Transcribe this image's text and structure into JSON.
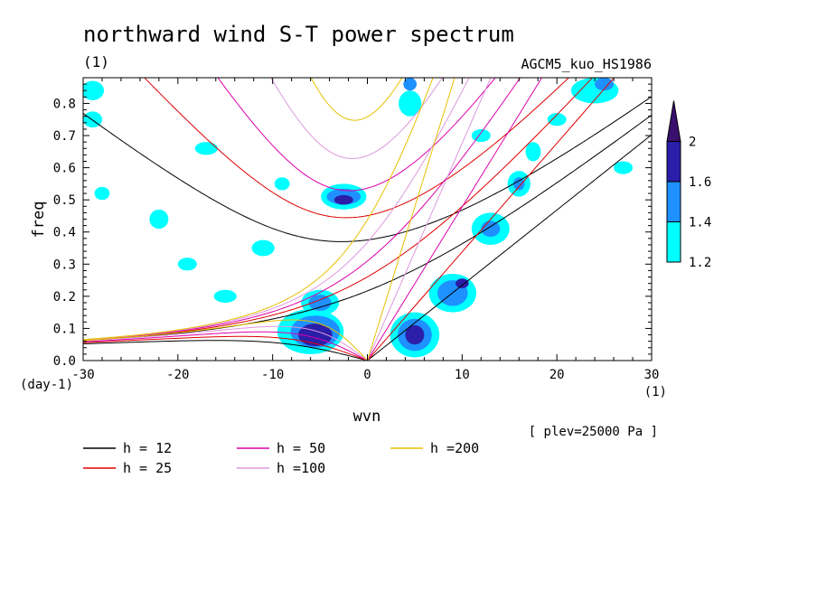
{
  "chart_data": {
    "type": "heatmap",
    "title": "northward wind S-T power spectrum",
    "unit_label": "(1)",
    "experiment": "AGCM5_kuo_HS1986",
    "xlabel": "wvn",
    "x_unit": "(1)",
    "ylabel": "freq",
    "y_unit": "(day-1)",
    "xlim": [
      -30,
      30
    ],
    "ylim": [
      0,
      0.88
    ],
    "x_ticks": [
      "-30",
      "-20",
      "-10",
      "0",
      "10",
      "20",
      "30"
    ],
    "y_ticks": [
      "0.0",
      "0.1",
      "0.2",
      "0.3",
      "0.4",
      "0.5",
      "0.6",
      "0.7",
      "0.8"
    ],
    "annotation": "[ plev=25000 Pa ]",
    "colorbar": {
      "levels": [
        "1.2",
        "1.4",
        "1.6",
        "2"
      ],
      "colors": [
        "#00ffff",
        "#1e90ff",
        "#2b1ea8",
        "#3b0f6e"
      ]
    },
    "dispersion_curves": [
      {
        "label": "h = 12",
        "h": 12,
        "color": "#000000"
      },
      {
        "label": "h = 25",
        "h": 25,
        "color": "#dd0000"
      },
      {
        "label": "h = 50",
        "h": 50,
        "color": "#dd00aa"
      },
      {
        "label": "h =100",
        "h": 100,
        "color": "#dd99dd"
      },
      {
        "label": "h =200",
        "h": 200,
        "color": "#e6c000"
      }
    ],
    "power_regions": [
      {
        "level": 1,
        "x": -6,
        "y": 0.09,
        "rx": 3.5,
        "ry": 0.07
      },
      {
        "level": 2,
        "x": -5.5,
        "y": 0.09,
        "rx": 2.6,
        "ry": 0.05
      },
      {
        "level": 3,
        "x": -5.5,
        "y": 0.08,
        "rx": 1.8,
        "ry": 0.035
      },
      {
        "level": 1,
        "x": -5,
        "y": 0.18,
        "rx": 2,
        "ry": 0.04
      },
      {
        "level": 2,
        "x": -5,
        "y": 0.18,
        "rx": 1.2,
        "ry": 0.025
      },
      {
        "level": 1,
        "x": -2.5,
        "y": 0.51,
        "rx": 2.4,
        "ry": 0.04
      },
      {
        "level": 2,
        "x": -2.5,
        "y": 0.51,
        "rx": 1.8,
        "ry": 0.025
      },
      {
        "level": 3,
        "x": -2.5,
        "y": 0.5,
        "rx": 1,
        "ry": 0.015
      },
      {
        "level": 1,
        "x": 5,
        "y": 0.08,
        "rx": 2.6,
        "ry": 0.07
      },
      {
        "level": 2,
        "x": 5,
        "y": 0.08,
        "rx": 1.8,
        "ry": 0.05
      },
      {
        "level": 3,
        "x": 5,
        "y": 0.08,
        "rx": 1,
        "ry": 0.03
      },
      {
        "level": 1,
        "x": 9,
        "y": 0.21,
        "rx": 2.5,
        "ry": 0.06
      },
      {
        "level": 2,
        "x": 9,
        "y": 0.21,
        "rx": 1.6,
        "ry": 0.04
      },
      {
        "level": 3,
        "x": 10,
        "y": 0.24,
        "rx": 0.7,
        "ry": 0.015
      },
      {
        "level": 1,
        "x": 13,
        "y": 0.41,
        "rx": 2,
        "ry": 0.05
      },
      {
        "level": 2,
        "x": 13,
        "y": 0.41,
        "rx": 1,
        "ry": 0.025
      },
      {
        "level": 1,
        "x": 16,
        "y": 0.55,
        "rx": 1.2,
        "ry": 0.04
      },
      {
        "level": 2,
        "x": 16,
        "y": 0.55,
        "rx": 0.6,
        "ry": 0.02
      },
      {
        "level": 1,
        "x": 17.5,
        "y": 0.65,
        "rx": 0.8,
        "ry": 0.03
      },
      {
        "level": 1,
        "x": 4.5,
        "y": 0.8,
        "rx": 1.2,
        "ry": 0.04
      },
      {
        "level": 2,
        "x": 4.5,
        "y": 0.86,
        "rx": 0.7,
        "ry": 0.02
      },
      {
        "level": 1,
        "x": 24,
        "y": 0.84,
        "rx": 2.5,
        "ry": 0.04
      },
      {
        "level": 2,
        "x": 25,
        "y": 0.86,
        "rx": 1,
        "ry": 0.02
      },
      {
        "level": 1,
        "x": -29,
        "y": 0.84,
        "rx": 1.2,
        "ry": 0.03
      },
      {
        "level": 1,
        "x": -29,
        "y": 0.75,
        "rx": 1,
        "ry": 0.025
      },
      {
        "level": 1,
        "x": -28,
        "y": 0.52,
        "rx": 0.8,
        "ry": 0.02
      },
      {
        "level": 1,
        "x": -22,
        "y": 0.44,
        "rx": 1,
        "ry": 0.03
      },
      {
        "level": 1,
        "x": -19,
        "y": 0.3,
        "rx": 1,
        "ry": 0.02
      },
      {
        "level": 1,
        "x": -11,
        "y": 0.35,
        "rx": 1.2,
        "ry": 0.025
      },
      {
        "level": 1,
        "x": -17,
        "y": 0.66,
        "rx": 1.2,
        "ry": 0.02
      },
      {
        "level": 1,
        "x": -9,
        "y": 0.55,
        "rx": 0.8,
        "ry": 0.02
      },
      {
        "level": 1,
        "x": -15,
        "y": 0.2,
        "rx": 1.2,
        "ry": 0.02
      },
      {
        "level": 1,
        "x": 27,
        "y": 0.6,
        "rx": 1,
        "ry": 0.02
      },
      {
        "level": 1,
        "x": 12,
        "y": 0.7,
        "rx": 1,
        "ry": 0.02
      },
      {
        "level": 1,
        "x": 20,
        "y": 0.75,
        "rx": 1,
        "ry": 0.02
      }
    ]
  }
}
